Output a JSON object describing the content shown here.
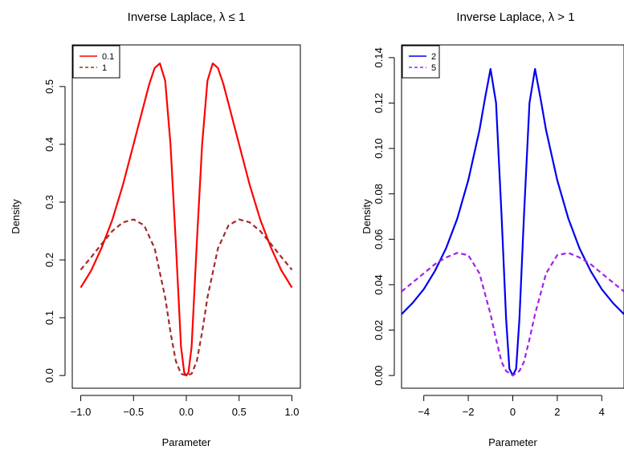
{
  "chart_data": [
    {
      "type": "line",
      "title": "Inverse Laplace, λ ≤ 1",
      "xlabel": "Parameter",
      "ylabel": "Density",
      "xlim": [
        -1.0,
        1.0
      ],
      "ylim": [
        0.0,
        0.55
      ],
      "xticks": [
        "−1.0",
        "−0.5",
        "0.0",
        "0.5",
        "1.0"
      ],
      "xtick_values": [
        -1.0,
        -0.5,
        0.0,
        0.5,
        1.0
      ],
      "yticks": [
        "0.0",
        "0.1",
        "0.2",
        "0.3",
        "0.4",
        "0.5"
      ],
      "ytick_values": [
        0.0,
        0.1,
        0.2,
        0.3,
        0.4,
        0.5
      ],
      "grid": false,
      "legend_position": "top-left",
      "series": [
        {
          "name": "0.1",
          "color": "#ff0000",
          "dash": "solid",
          "x": [
            -1.0,
            -0.9,
            -0.8,
            -0.7,
            -0.6,
            -0.5,
            -0.4,
            -0.35,
            -0.3,
            -0.25,
            -0.2,
            -0.15,
            -0.1,
            -0.05,
            -0.02,
            0.0,
            0.02,
            0.05,
            0.1,
            0.15,
            0.2,
            0.25,
            0.3,
            0.35,
            0.4,
            0.5,
            0.6,
            0.7,
            0.8,
            0.9,
            1.0
          ],
          "y": [
            0.152,
            0.182,
            0.222,
            0.27,
            0.33,
            0.4,
            0.47,
            0.505,
            0.532,
            0.54,
            0.51,
            0.4,
            0.23,
            0.05,
            0.005,
            0.0,
            0.005,
            0.05,
            0.23,
            0.4,
            0.51,
            0.54,
            0.532,
            0.505,
            0.47,
            0.4,
            0.33,
            0.27,
            0.222,
            0.182,
            0.152
          ]
        },
        {
          "name": "1",
          "color": "#a52a2a",
          "dash": "dashed",
          "x": [
            -1.0,
            -0.9,
            -0.8,
            -0.7,
            -0.6,
            -0.5,
            -0.4,
            -0.3,
            -0.2,
            -0.15,
            -0.1,
            -0.05,
            0.0,
            0.05,
            0.1,
            0.15,
            0.2,
            0.3,
            0.4,
            0.5,
            0.6,
            0.7,
            0.8,
            0.9,
            1.0
          ],
          "y": [
            0.183,
            0.205,
            0.228,
            0.25,
            0.265,
            0.27,
            0.26,
            0.22,
            0.135,
            0.075,
            0.025,
            0.003,
            0.0,
            0.003,
            0.025,
            0.075,
            0.135,
            0.22,
            0.26,
            0.27,
            0.265,
            0.25,
            0.228,
            0.205,
            0.183
          ]
        }
      ]
    },
    {
      "type": "line",
      "title": "Inverse Laplace, λ > 1",
      "xlabel": "Parameter",
      "ylabel": "Density",
      "xlim": [
        -5,
        5
      ],
      "ylim": [
        0.0,
        0.14
      ],
      "xticks": [
        "−4",
        "−2",
        "0",
        "2",
        "4"
      ],
      "xtick_values": [
        -4,
        -2,
        0,
        2,
        4
      ],
      "yticks": [
        "0.00",
        "0.02",
        "0.04",
        "0.06",
        "0.08",
        "0.10",
        "0.12",
        "0.14"
      ],
      "ytick_values": [
        0.0,
        0.02,
        0.04,
        0.06,
        0.08,
        0.1,
        0.12,
        0.14
      ],
      "grid": false,
      "legend_position": "top-left",
      "series": [
        {
          "name": "2",
          "color": "#0000ee",
          "dash": "solid",
          "x": [
            -5,
            -4.5,
            -4,
            -3.5,
            -3,
            -2.5,
            -2,
            -1.5,
            -1.25,
            -1,
            -0.75,
            -0.5,
            -0.3,
            -0.15,
            0,
            0.15,
            0.3,
            0.5,
            0.75,
            1,
            1.25,
            1.5,
            2,
            2.5,
            3,
            3.5,
            4,
            4.5,
            5
          ],
          "y": [
            0.027,
            0.032,
            0.038,
            0.046,
            0.056,
            0.069,
            0.086,
            0.108,
            0.122,
            0.135,
            0.12,
            0.07,
            0.025,
            0.003,
            0.0,
            0.003,
            0.025,
            0.07,
            0.12,
            0.135,
            0.122,
            0.108,
            0.086,
            0.069,
            0.056,
            0.046,
            0.038,
            0.032,
            0.027
          ]
        },
        {
          "name": "5",
          "color": "#a020f0",
          "dash": "dashed",
          "x": [
            -5,
            -4.5,
            -4,
            -3.5,
            -3,
            -2.5,
            -2,
            -1.5,
            -1,
            -0.75,
            -0.5,
            -0.3,
            0,
            0.3,
            0.5,
            0.75,
            1,
            1.5,
            2,
            2.5,
            3,
            3.5,
            4,
            4.5,
            5
          ],
          "y": [
            0.037,
            0.041,
            0.045,
            0.049,
            0.052,
            0.054,
            0.053,
            0.045,
            0.027,
            0.016,
            0.006,
            0.002,
            0.0,
            0.002,
            0.006,
            0.016,
            0.027,
            0.045,
            0.053,
            0.054,
            0.052,
            0.049,
            0.045,
            0.041,
            0.037
          ]
        }
      ]
    }
  ]
}
